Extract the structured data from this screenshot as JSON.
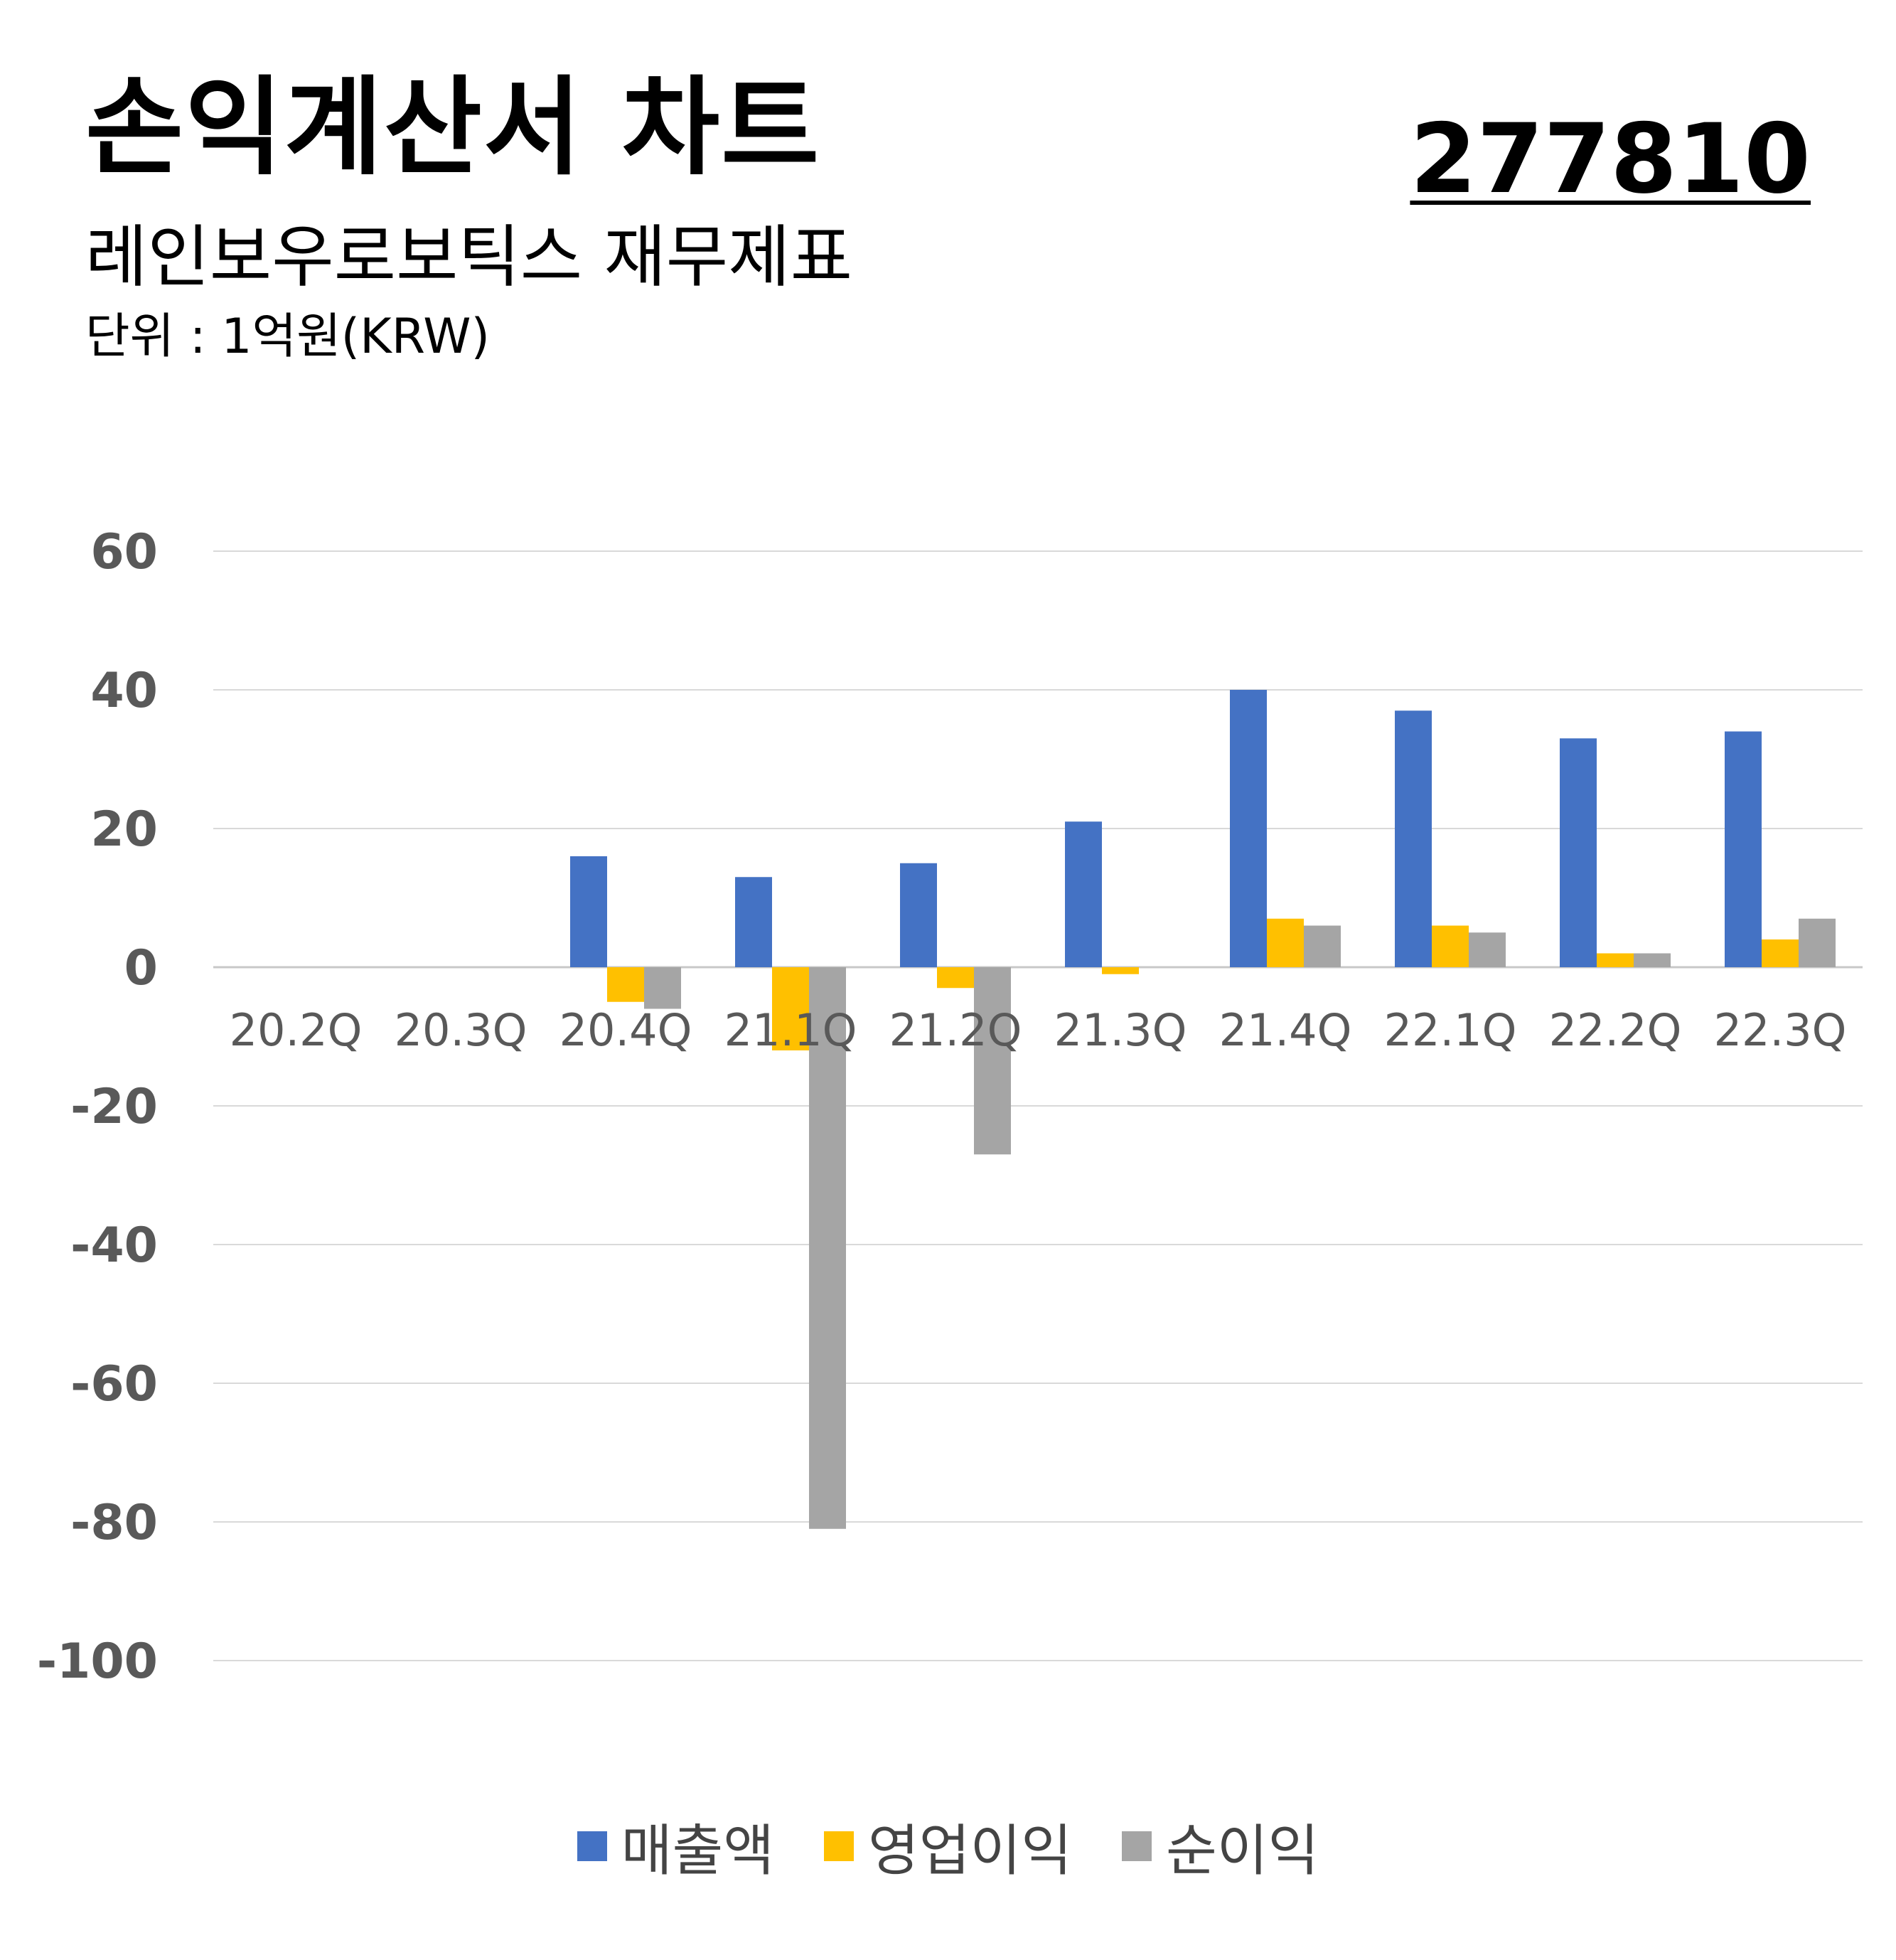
{
  "header": {
    "title": "손익계산서 차트",
    "subtitle": "레인보우로보틱스 재무제표",
    "unit": "단위 : 1억원(KRW)",
    "code": "277810"
  },
  "colors": {
    "revenue": "#4472C4",
    "operating": "#FFC000",
    "net": "#A5A5A5",
    "grid": "#D9D9D9",
    "tick": "#595959"
  },
  "chart_data": {
    "type": "bar",
    "categories": [
      "20.2Q",
      "20.3Q",
      "20.4Q",
      "21.1Q",
      "21.2Q",
      "21.3Q",
      "21.4Q",
      "22.1Q",
      "22.2Q",
      "22.3Q"
    ],
    "series": [
      {
        "name": "매출액",
        "values": [
          0,
          0,
          16,
          13,
          15,
          21,
          40,
          37,
          33,
          34
        ]
      },
      {
        "name": "영업이익",
        "values": [
          0,
          0,
          -5,
          -12,
          -3,
          -1,
          7,
          6,
          2,
          4
        ]
      },
      {
        "name": "순이익",
        "values": [
          0,
          0,
          -6,
          -81,
          -27,
          0,
          6,
          5,
          2,
          7
        ]
      }
    ],
    "ylim": [
      -100,
      60
    ],
    "yticks": [
      "60",
      "40",
      "20",
      "0",
      "-20",
      "-40",
      "-60",
      "-80",
      "-100"
    ],
    "grid": true,
    "legend": "bottom"
  }
}
